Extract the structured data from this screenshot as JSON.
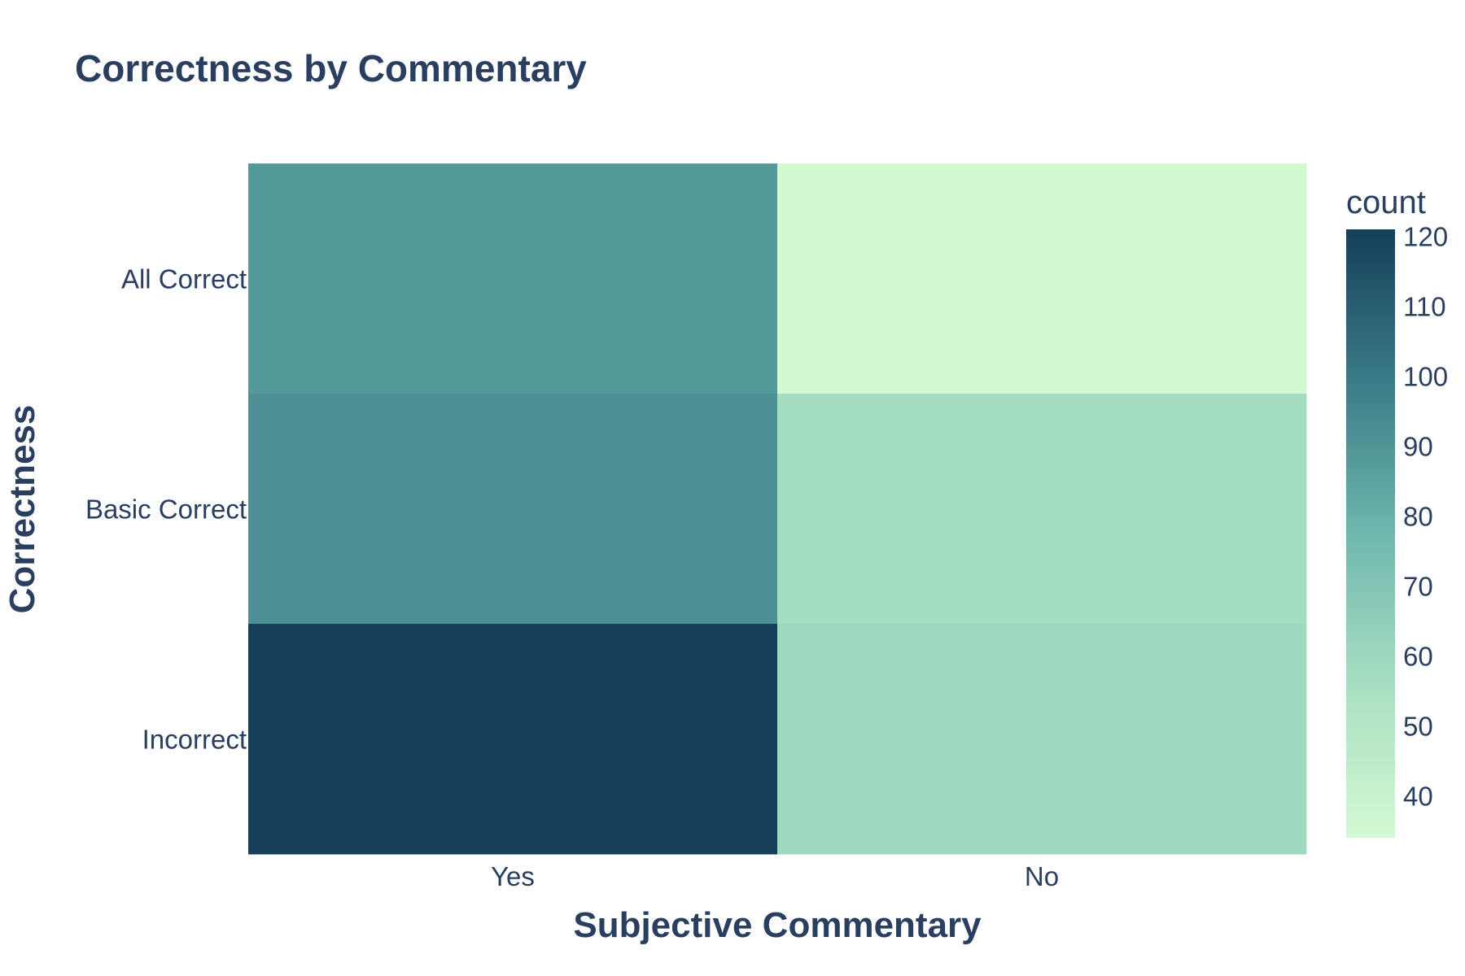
{
  "chart_data": {
    "type": "heatmap",
    "title": "Correctness by Commentary",
    "xlabel": "Subjective Commentary",
    "ylabel": "Correctness",
    "x_categories": [
      "Yes",
      "No"
    ],
    "y_categories": [
      "All Correct",
      "Basic Correct",
      "Incorrect"
    ],
    "values": [
      [
        88,
        34
      ],
      [
        92,
        57
      ],
      [
        121,
        59
      ]
    ],
    "colorbar": {
      "title": "count",
      "range": [
        34,
        121
      ],
      "ticks": [
        40,
        50,
        60,
        70,
        80,
        90,
        100,
        110,
        120
      ],
      "colorscale": [
        "#d3f9d1",
        "#a8dfc2",
        "#6fb7ae",
        "#3a7b87",
        "#153f5a"
      ]
    },
    "grid": false
  }
}
